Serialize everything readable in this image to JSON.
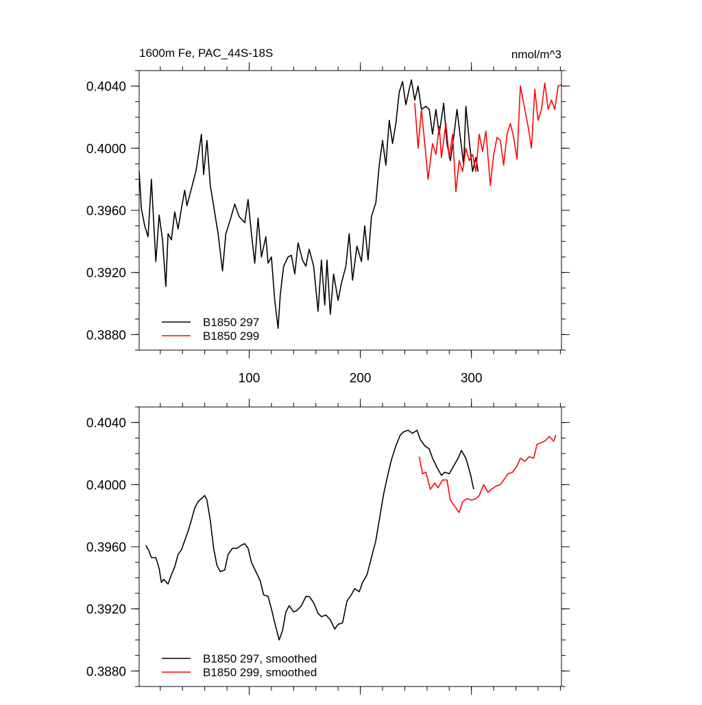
{
  "chart_data": [
    {
      "type": "line",
      "title": "1600m Fe, PAC_44S-18S",
      "units": "nmol/m^3",
      "xlim": [
        1,
        381
      ],
      "ylim": [
        0.387,
        0.405
      ],
      "xticks": [
        100,
        200,
        300
      ],
      "show_xtick_labels": true,
      "yticks": [
        {
          "value": 0.388,
          "label": "0.3880"
        },
        {
          "value": 0.392,
          "label": "0.3920"
        },
        {
          "value": 0.396,
          "label": "0.3960"
        },
        {
          "value": 0.4,
          "label": "0.4000"
        },
        {
          "value": 0.404,
          "label": "0.4040"
        }
      ],
      "minor_xstep": 20,
      "minor_ystep": 0.001,
      "legend": "lower left",
      "series": [
        {
          "name": "B1850 297",
          "color": "#000000",
          "x": [
            1,
            3,
            6,
            9,
            12,
            16,
            19,
            22,
            25,
            27,
            30,
            33,
            36,
            39,
            42,
            44,
            48,
            52,
            54,
            57,
            59,
            62,
            65,
            68,
            72,
            76,
            79,
            83,
            87,
            91,
            96,
            99,
            102,
            105,
            108,
            111,
            115,
            117,
            120,
            123,
            126,
            128,
            131,
            135,
            138,
            141,
            144,
            148,
            151,
            154,
            158,
            162,
            165,
            168,
            170,
            173,
            176,
            180,
            183,
            187,
            190,
            193,
            197,
            201,
            204,
            207,
            210,
            214,
            217,
            220,
            223,
            226,
            229,
            232,
            235,
            238,
            241,
            244,
            246,
            249,
            252,
            255,
            259,
            262,
            265,
            268,
            271,
            275,
            278,
            281,
            284,
            287,
            290,
            293,
            295,
            298,
            301,
            304,
            306
          ],
          "values": [
            0.3985,
            0.3961,
            0.395,
            0.3943,
            0.398,
            0.3927,
            0.3957,
            0.3941,
            0.3911,
            0.3945,
            0.3941,
            0.3959,
            0.3948,
            0.3961,
            0.3973,
            0.3963,
            0.3974,
            0.3985,
            0.3994,
            0.4009,
            0.3983,
            0.4005,
            0.3976,
            0.3963,
            0.3945,
            0.3921,
            0.3945,
            0.3954,
            0.3964,
            0.3956,
            0.3952,
            0.3967,
            0.3945,
            0.3926,
            0.3955,
            0.393,
            0.3943,
            0.3926,
            0.393,
            0.3902,
            0.3884,
            0.3906,
            0.3924,
            0.393,
            0.3931,
            0.3919,
            0.3939,
            0.3928,
            0.3924,
            0.3935,
            0.3924,
            0.3895,
            0.3928,
            0.3899,
            0.3928,
            0.3893,
            0.3919,
            0.3902,
            0.3913,
            0.3924,
            0.3945,
            0.3915,
            0.3937,
            0.3927,
            0.395,
            0.3928,
            0.3956,
            0.3965,
            0.3989,
            0.4005,
            0.3989,
            0.4018,
            0.4003,
            0.4016,
            0.4036,
            0.4043,
            0.4028,
            0.4038,
            0.4044,
            0.4031,
            0.404,
            0.4025,
            0.4027,
            0.4025,
            0.4009,
            0.4025,
            0.4009,
            0.4029,
            0.4003,
            0.3992,
            0.4007,
            0.4025,
            0.4007,
            0.3989,
            0.4027,
            0.4005,
            0.3985,
            0.3994,
            0.3985
          ]
        },
        {
          "name": "B1850 299",
          "color": "#ff0000",
          "x": [
            249,
            252,
            255,
            258,
            261,
            265,
            268,
            271,
            273,
            277,
            280,
            283,
            286,
            289,
            292,
            295,
            298,
            301,
            304,
            307,
            310,
            313,
            317,
            320,
            323,
            326,
            329,
            332,
            335,
            338,
            341,
            344,
            347,
            351,
            354,
            357,
            360,
            363,
            366,
            369,
            372,
            375,
            378,
            381
          ],
          "values": [
            0.4029,
            0.4,
            0.4025,
            0.4003,
            0.398,
            0.4003,
            0.3996,
            0.4014,
            0.3994,
            0.4016,
            0.3994,
            0.4009,
            0.3972,
            0.3992,
            0.3985,
            0.4,
            0.3992,
            0.3996,
            0.3985,
            0.4009,
            0.3998,
            0.4011,
            0.3976,
            0.3996,
            0.4007,
            0.4005,
            0.3989,
            0.4009,
            0.4016,
            0.4007,
            0.3993,
            0.404,
            0.4029,
            0.4014,
            0.4,
            0.4038,
            0.4018,
            0.4025,
            0.4042,
            0.4025,
            0.4031,
            0.4025,
            0.404,
            0.4041
          ]
        }
      ]
    },
    {
      "type": "line",
      "xlim": [
        1,
        381
      ],
      "ylim": [
        0.387,
        0.405
      ],
      "xticks": [
        100,
        200,
        300
      ],
      "show_xtick_labels": false,
      "yticks": [
        {
          "value": 0.388,
          "label": "0.3880"
        },
        {
          "value": 0.392,
          "label": "0.3920"
        },
        {
          "value": 0.396,
          "label": "0.3960"
        },
        {
          "value": 0.4,
          "label": "0.4000"
        },
        {
          "value": 0.404,
          "label": "0.4040"
        }
      ],
      "minor_xstep": 20,
      "minor_ystep": 0.001,
      "legend": "lower left",
      "series": [
        {
          "name": "B1850 297, smoothed",
          "color": "#000000",
          "x": [
            7,
            10,
            12,
            16,
            19,
            21,
            23,
            27,
            30,
            33,
            36,
            39,
            42,
            45,
            48,
            51,
            54,
            57,
            60,
            62,
            65,
            68,
            71,
            74,
            78,
            81,
            85,
            89,
            93,
            96,
            99,
            102,
            106,
            110,
            113,
            117,
            120,
            123,
            127,
            130,
            133,
            136,
            140,
            143,
            147,
            151,
            154,
            158,
            162,
            165,
            169,
            173,
            177,
            180,
            184,
            188,
            191,
            195,
            199,
            202,
            206,
            210,
            214,
            217,
            221,
            225,
            228,
            232,
            236,
            239,
            243,
            247,
            251,
            254,
            258,
            262,
            265,
            269,
            273,
            276,
            280,
            284,
            288,
            291,
            295,
            299,
            302
          ],
          "values": [
            0.3961,
            0.3957,
            0.3953,
            0.3953,
            0.3946,
            0.3937,
            0.3939,
            0.3936,
            0.3942,
            0.3947,
            0.3955,
            0.3958,
            0.3964,
            0.397,
            0.3977,
            0.3985,
            0.3989,
            0.3991,
            0.3993,
            0.399,
            0.3977,
            0.3959,
            0.3948,
            0.3944,
            0.3945,
            0.3955,
            0.3959,
            0.3959,
            0.3961,
            0.3962,
            0.3959,
            0.395,
            0.3944,
            0.3938,
            0.3929,
            0.3928,
            0.392,
            0.3911,
            0.39,
            0.3906,
            0.3918,
            0.3922,
            0.3918,
            0.3919,
            0.3922,
            0.3928,
            0.3928,
            0.3924,
            0.3917,
            0.3915,
            0.3916,
            0.3913,
            0.3907,
            0.391,
            0.3911,
            0.3925,
            0.3928,
            0.3933,
            0.3931,
            0.3937,
            0.3942,
            0.3953,
            0.3964,
            0.3977,
            0.3994,
            0.4007,
            0.4016,
            0.4025,
            0.4032,
            0.4034,
            0.4035,
            0.4033,
            0.4035,
            0.4029,
            0.4025,
            0.4023,
            0.4017,
            0.4011,
            0.4006,
            0.4008,
            0.4007,
            0.4012,
            0.4017,
            0.4022,
            0.4017,
            0.4007,
            0.3997
          ]
        },
        {
          "name": "B1850 299, smoothed",
          "color": "#ff0000",
          "x": [
            253,
            256,
            259,
            263,
            267,
            270,
            274,
            278,
            281,
            285,
            289,
            292,
            296,
            300,
            304,
            307,
            311,
            315,
            318,
            322,
            326,
            329,
            333,
            337,
            341,
            344,
            348,
            352,
            356,
            359,
            363,
            366,
            370,
            374,
            376
          ],
          "values": [
            0.4018,
            0.4007,
            0.4008,
            0.3997,
            0.4001,
            0.3998,
            0.4003,
            0.4003,
            0.399,
            0.3986,
            0.3982,
            0.3989,
            0.3991,
            0.399,
            0.3991,
            0.3993,
            0.4,
            0.3995,
            0.3997,
            0.3999,
            0.4,
            0.4003,
            0.4007,
            0.4008,
            0.4012,
            0.4017,
            0.4015,
            0.4018,
            0.4017,
            0.4026,
            0.4027,
            0.4028,
            0.4031,
            0.4028,
            0.4032
          ]
        }
      ]
    }
  ]
}
